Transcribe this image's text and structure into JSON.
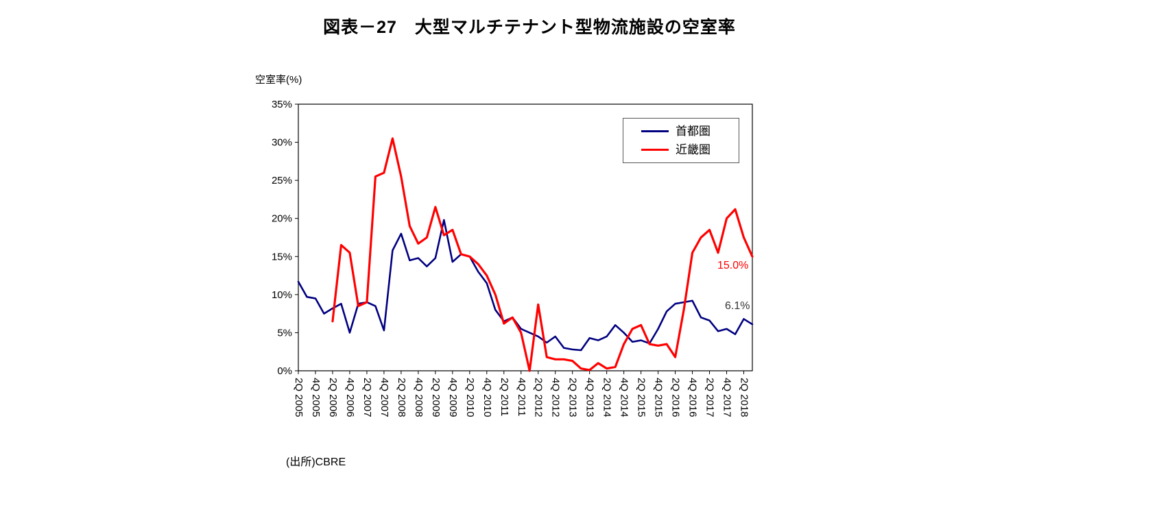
{
  "title": "図表－27　大型マルチテナント型物流施設の空室率",
  "y_axis_label": "空室率(%)",
  "source": "(出所)CBRE",
  "chart_data": {
    "type": "line",
    "grid": false,
    "legend_position": "top-right-inside",
    "ylabel": "空室率(%)",
    "ylim": [
      0,
      35
    ],
    "y_tick_step": 5,
    "y_tick_suffix": "%",
    "x_tick_every": 2,
    "categories": [
      "2Q 2005",
      "3Q 2005",
      "4Q 2005",
      "1Q 2006",
      "2Q 2006",
      "3Q 2006",
      "4Q 2006",
      "1Q 2007",
      "2Q 2007",
      "3Q 2007",
      "4Q 2007",
      "1Q 2008",
      "2Q 2008",
      "3Q 2008",
      "4Q 2008",
      "1Q 2009",
      "2Q 2009",
      "3Q 2009",
      "4Q 2009",
      "1Q 2010",
      "2Q 2010",
      "3Q 2010",
      "4Q 2010",
      "1Q 2011",
      "2Q 2011",
      "3Q 2011",
      "4Q 2011",
      "1Q 2012",
      "2Q 2012",
      "3Q 2012",
      "4Q 2012",
      "1Q 2013",
      "2Q 2013",
      "3Q 2013",
      "4Q 2013",
      "1Q 2014",
      "2Q 2014",
      "3Q 2014",
      "4Q 2014",
      "1Q 2015",
      "2Q 2015",
      "3Q 2015",
      "4Q 2015",
      "1Q 2016",
      "2Q 2016",
      "3Q 2016",
      "4Q 2016",
      "1Q 2017",
      "2Q 2017",
      "3Q 2017",
      "4Q 2017",
      "1Q 2018",
      "2Q 2018",
      "3Q 2018"
    ],
    "series": [
      {
        "name": "首都圏",
        "color": "#000080",
        "values": [
          11.7,
          9.7,
          9.5,
          7.5,
          8.2,
          8.8,
          5.0,
          8.8,
          9.0,
          8.5,
          5.3,
          15.8,
          18.0,
          14.5,
          14.8,
          13.7,
          14.8,
          19.8,
          14.3,
          15.3,
          15.0,
          13.0,
          11.5,
          8.0,
          6.5,
          7.0,
          5.5,
          5.0,
          4.5,
          3.7,
          4.5,
          3.0,
          2.8,
          2.7,
          4.3,
          4.0,
          4.5,
          6.0,
          5.0,
          3.8,
          4.0,
          3.6,
          5.5,
          7.8,
          8.8,
          9.0,
          9.2,
          7.0,
          6.6,
          5.2,
          5.5,
          4.8,
          6.8,
          6.1
        ]
      },
      {
        "name": "近畿圏",
        "color": "#FF0000",
        "values": [
          null,
          null,
          null,
          null,
          6.5,
          16.5,
          15.5,
          8.5,
          9.0,
          25.5,
          26.0,
          30.5,
          25.5,
          19.0,
          16.7,
          17.5,
          21.5,
          17.8,
          18.5,
          15.3,
          15.0,
          14.0,
          12.5,
          10.0,
          6.2,
          7.0,
          5.0,
          0.0,
          8.7,
          1.8,
          1.5,
          1.5,
          1.3,
          0.3,
          0.1,
          1.0,
          0.3,
          0.5,
          3.5,
          5.5,
          6.0,
          3.5,
          3.3,
          3.5,
          1.8,
          8.0,
          15.5,
          17.5,
          18.5,
          15.5,
          20.0,
          21.2,
          17.5,
          15.0
        ]
      }
    ],
    "annotations": [
      {
        "text": "15.0%",
        "color": "#FF0000",
        "series_index": 1
      },
      {
        "text": "6.1%",
        "color": "#333333",
        "series_index": 0
      }
    ]
  }
}
